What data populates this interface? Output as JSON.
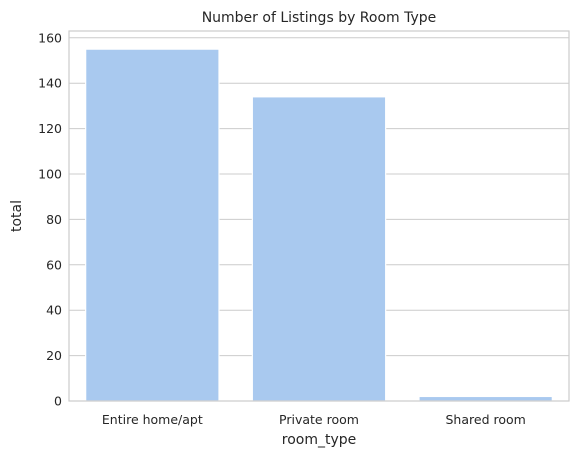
{
  "chart_data": {
    "type": "bar",
    "title": "Number of Listings by Room Type",
    "xlabel": "room_type",
    "ylabel": "total",
    "categories": [
      "Entire home/apt",
      "Private room",
      "Shared room"
    ],
    "values": [
      155,
      134,
      2
    ],
    "ylim": [
      0,
      163
    ],
    "yticks": [
      0,
      20,
      40,
      60,
      80,
      100,
      120,
      140,
      160
    ],
    "grid": "horizontal",
    "bar_color": "#a9c9ef"
  }
}
